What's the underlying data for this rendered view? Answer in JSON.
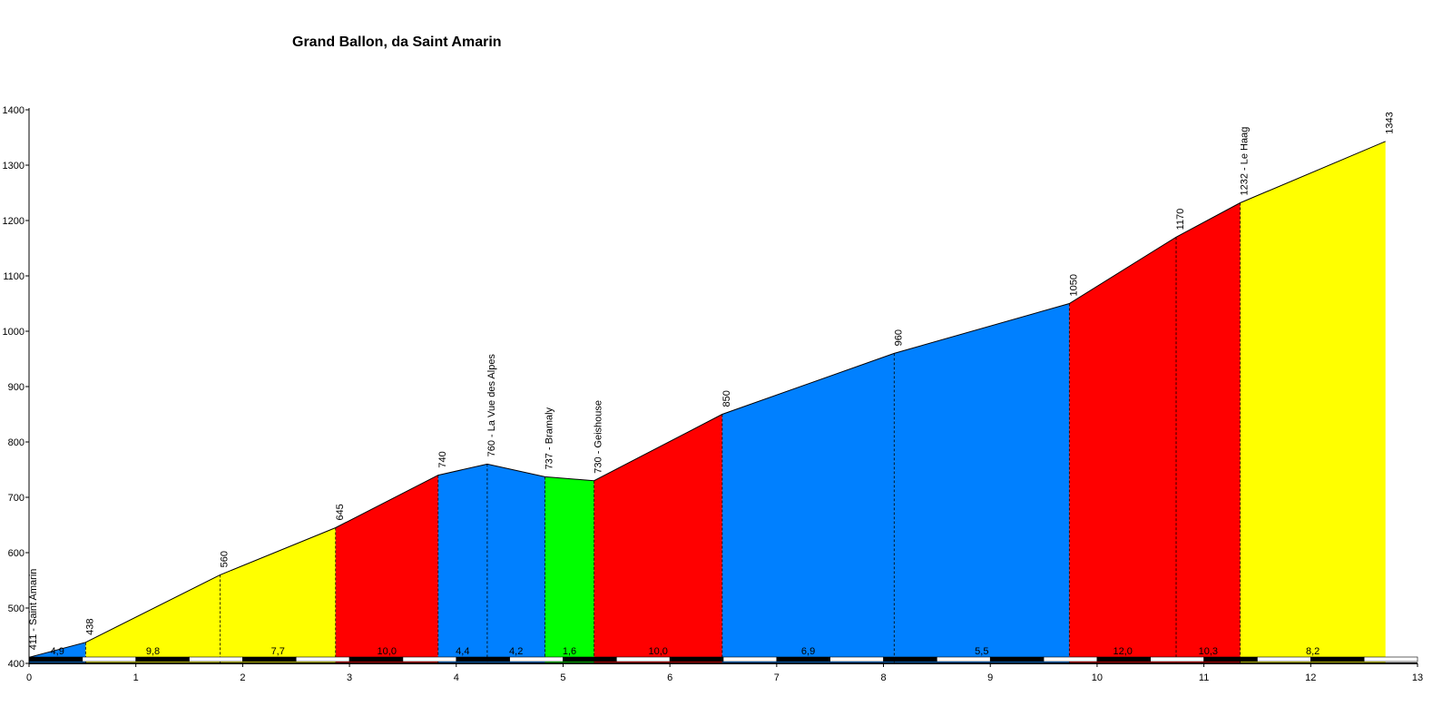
{
  "chart_data": {
    "type": "area",
    "title": "Grand Ballon, da Saint Amarin",
    "xlabel": "",
    "ylabel": "",
    "xlim": [
      0,
      13
    ],
    "ylim": [
      400,
      1400
    ],
    "x_ticks": [
      0,
      1,
      2,
      3,
      4,
      5,
      6,
      7,
      8,
      9,
      10,
      11,
      12,
      13
    ],
    "y_ticks": [
      400,
      500,
      600,
      700,
      800,
      900,
      1000,
      1100,
      1200,
      1300,
      1400
    ],
    "profile": [
      {
        "x": 0.0,
        "y": 411
      },
      {
        "x": 0.53,
        "y": 438
      },
      {
        "x": 1.79,
        "y": 560
      },
      {
        "x": 2.87,
        "y": 645
      },
      {
        "x": 3.83,
        "y": 740
      },
      {
        "x": 4.29,
        "y": 760
      },
      {
        "x": 4.83,
        "y": 737
      },
      {
        "x": 5.29,
        "y": 730
      },
      {
        "x": 6.49,
        "y": 850
      },
      {
        "x": 8.1,
        "y": 960
      },
      {
        "x": 9.74,
        "y": 1050
      },
      {
        "x": 10.74,
        "y": 1170
      },
      {
        "x": 11.34,
        "y": 1232
      },
      {
        "x": 12.7,
        "y": 1343
      }
    ],
    "segments": [
      {
        "x0": 0.0,
        "x1": 0.53,
        "gradient": "4,9",
        "color": "#0080ff"
      },
      {
        "x0": 0.53,
        "x1": 1.79,
        "gradient": "9,8",
        "color": "#ffff00"
      },
      {
        "x0": 1.79,
        "x1": 2.87,
        "gradient": "7,7",
        "color": "#ffff00"
      },
      {
        "x0": 2.87,
        "x1": 3.83,
        "gradient": "10,0",
        "color": "#ff0000"
      },
      {
        "x0": 3.83,
        "x1": 4.29,
        "gradient": "4,4",
        "color": "#0080ff"
      },
      {
        "x0": 4.29,
        "x1": 4.83,
        "gradient": "4,2",
        "color": "#0080ff"
      },
      {
        "x0": 4.83,
        "x1": 5.29,
        "gradient": "1,6",
        "color": "#00ff00"
      },
      {
        "x0": 5.29,
        "x1": 6.49,
        "gradient": "10,0",
        "color": "#ff0000"
      },
      {
        "x0": 6.49,
        "x1": 8.1,
        "gradient": "6,9",
        "color": "#0080ff"
      },
      {
        "x0": 8.1,
        "x1": 9.74,
        "gradient": "5,5",
        "color": "#0080ff"
      },
      {
        "x0": 9.74,
        "x1": 10.74,
        "gradient": "12,0",
        "color": "#ff0000"
      },
      {
        "x0": 10.74,
        "x1": 11.34,
        "gradient": "10,3",
        "color": "#ff0000"
      },
      {
        "x0": 11.34,
        "x1": 12.7,
        "gradient": "8,2",
        "color": "#ffff00"
      }
    ],
    "point_labels": [
      {
        "x": 0.0,
        "y": 411,
        "label": "411 - Saint Amarin"
      },
      {
        "x": 0.53,
        "y": 438,
        "label": "438"
      },
      {
        "x": 1.79,
        "y": 560,
        "label": "560"
      },
      {
        "x": 2.87,
        "y": 645,
        "label": "645"
      },
      {
        "x": 3.83,
        "y": 740,
        "label": "740"
      },
      {
        "x": 4.29,
        "y": 760,
        "label": "760 - La Vue des Alpes"
      },
      {
        "x": 4.83,
        "y": 737,
        "label": "737 - Bramaly"
      },
      {
        "x": 5.29,
        "y": 730,
        "label": "730 - Geishouse"
      },
      {
        "x": 6.49,
        "y": 850,
        "label": "850"
      },
      {
        "x": 8.1,
        "y": 960,
        "label": "960"
      },
      {
        "x": 9.74,
        "y": 1050,
        "label": "1050"
      },
      {
        "x": 10.74,
        "y": 1170,
        "label": "1170"
      },
      {
        "x": 11.34,
        "y": 1232,
        "label": "1232 - Le Haag"
      },
      {
        "x": 12.7,
        "y": 1343,
        "label": "1343"
      }
    ],
    "grid": false,
    "legend": "none"
  }
}
